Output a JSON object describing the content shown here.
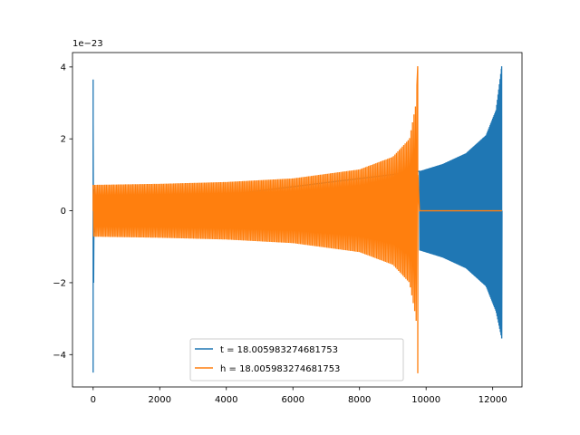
{
  "chart_data": {
    "type": "line",
    "title": "",
    "xlabel": "",
    "ylabel": "",
    "y_offset_label": "1e−23",
    "xlim": [
      -620,
      12880
    ],
    "ylim": [
      -4.9,
      4.4
    ],
    "x_ticks": [
      0,
      2000,
      4000,
      6000,
      8000,
      10000,
      12000
    ],
    "x_tick_labels": [
      "0",
      "2000",
      "4000",
      "6000",
      "8000",
      "10000",
      "12000"
    ],
    "y_ticks": [
      -4,
      -2,
      0,
      2,
      4
    ],
    "y_tick_labels": [
      "−4",
      "−2",
      "0",
      "2",
      "4"
    ],
    "grid": false,
    "legend_position": "lower center",
    "series": [
      {
        "name": "t = 18.005983274681753",
        "color": "#1f77b4",
        "description": "chirp waveform, amplitude grows toward merger",
        "points": [
          [
            0,
            -4.5
          ],
          [
            0,
            3.65
          ],
          [
            0,
            -3.5
          ],
          [
            0,
            2.5
          ],
          [
            40,
            0.6
          ],
          [
            40,
            -0.6
          ],
          [
            9800,
            1.1
          ],
          [
            9800,
            -1.1
          ],
          [
            10500,
            1.3
          ],
          [
            10500,
            -1.3
          ],
          [
            11200,
            1.6
          ],
          [
            11200,
            -1.6
          ],
          [
            11800,
            2.1
          ],
          [
            11800,
            -2.1
          ],
          [
            12100,
            2.8
          ],
          [
            12100,
            -2.8
          ],
          [
            12270,
            4.02
          ],
          [
            12270,
            -3.55
          ],
          [
            12280,
            0
          ]
        ]
      },
      {
        "name": "h = 18.005983274681753",
        "color": "#ff7f0e",
        "description": "chirp waveform ending at merger then zero",
        "points": [
          [
            0,
            0.72
          ],
          [
            0,
            -0.72
          ],
          [
            2000,
            0.75
          ],
          [
            2000,
            -0.75
          ],
          [
            4000,
            0.8
          ],
          [
            4000,
            -0.8
          ],
          [
            6000,
            0.9
          ],
          [
            6000,
            -0.9
          ],
          [
            8000,
            1.15
          ],
          [
            8000,
            -1.15
          ],
          [
            9000,
            1.5
          ],
          [
            9000,
            -1.5
          ],
          [
            9500,
            2.0
          ],
          [
            9500,
            -2.0
          ],
          [
            9700,
            3.0
          ],
          [
            9700,
            -3.0
          ],
          [
            9750,
            4.02
          ],
          [
            9750,
            -4.52
          ],
          [
            9800,
            0
          ],
          [
            12280,
            0
          ]
        ]
      }
    ]
  }
}
